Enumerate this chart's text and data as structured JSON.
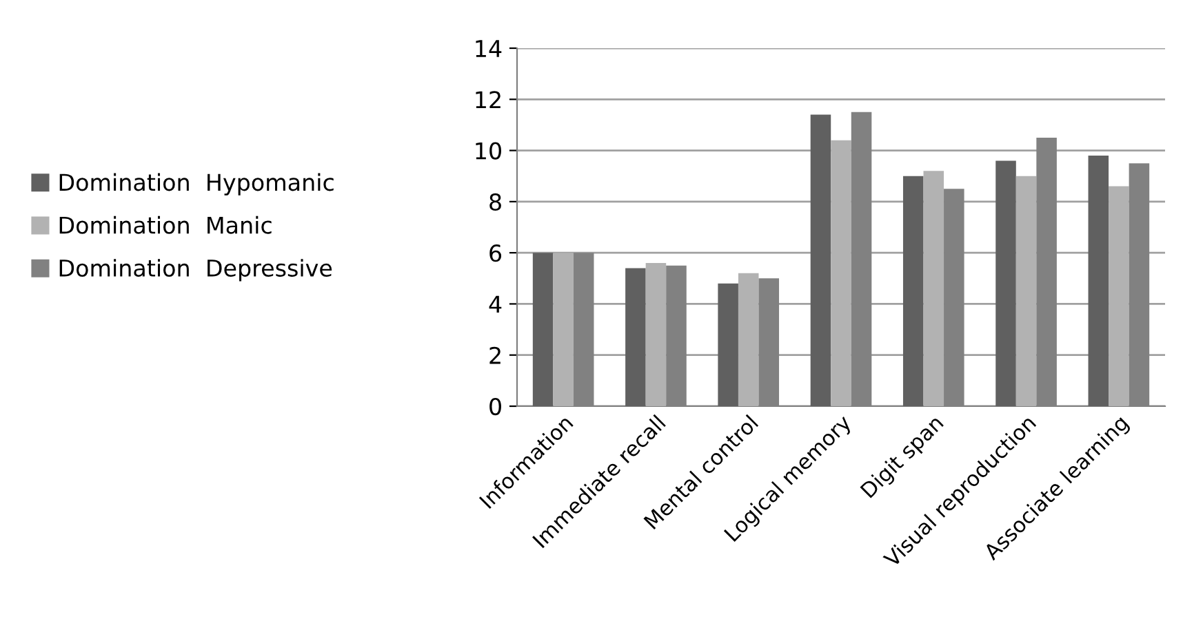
{
  "chart_data": {
    "type": "bar",
    "categories": [
      "Information",
      "Immediate recall",
      "Mental control",
      "Logical memory",
      "Digit span",
      "Visual reproduction",
      "Associate learning"
    ],
    "series": [
      {
        "name": "Domination  Hypomanic",
        "color": "#606060",
        "values": [
          6.0,
          5.4,
          4.8,
          11.4,
          9.0,
          9.6,
          9.8
        ]
      },
      {
        "name": "Domination  Manic",
        "color": "#b2b2b2",
        "values": [
          6.0,
          5.6,
          5.2,
          10.4,
          9.2,
          9.0,
          8.6
        ]
      },
      {
        "name": "Domination  Depressive",
        "color": "#818181",
        "values": [
          6.0,
          5.5,
          5.0,
          11.5,
          8.5,
          10.5,
          9.5
        ]
      }
    ],
    "ylim": [
      0,
      14
    ],
    "yticks": [
      0,
      2,
      4,
      6,
      8,
      10,
      12,
      14
    ],
    "grid": "y",
    "legend": "left"
  }
}
